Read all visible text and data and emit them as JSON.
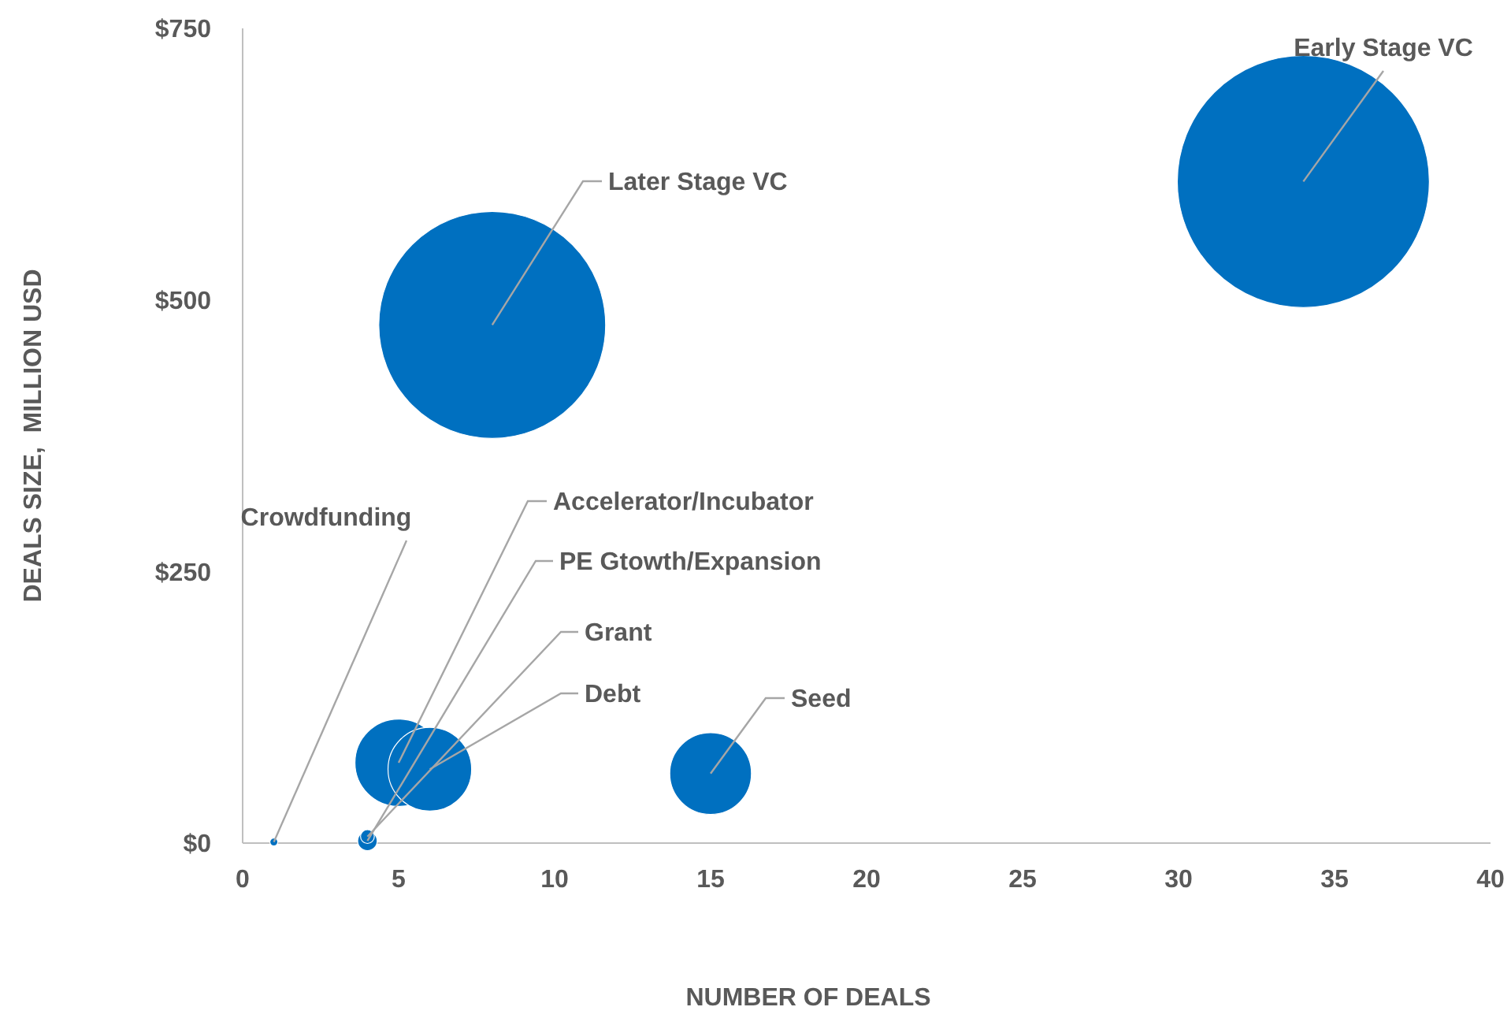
{
  "chart_data": {
    "type": "bubble",
    "xlabel": "NUMBER OF DEALS",
    "ylabel": "DEALS SIZE,  MILLION USD",
    "x": [
      34,
      8,
      1,
      5,
      4,
      4,
      6,
      15
    ],
    "values": [
      609,
      477,
      1,
      74,
      2,
      6,
      68,
      64
    ],
    "sizes": [
      1,
      0.81,
      0.001,
      0.12,
      0.006,
      0.003,
      0.11,
      0.105
    ],
    "color": "#0070c0",
    "annotations": [
      {
        "text": "Early Stage VC",
        "x": 34,
        "y": 609
      },
      {
        "text": "Later Stage VC",
        "x": 8,
        "y": 477
      },
      {
        "text": "Crowdfunding",
        "x": 1,
        "y": 1
      },
      {
        "text": "Accelerator/Incubator",
        "x": 5,
        "y": 74
      },
      {
        "text": "PE Gtowth/Expansion",
        "x": 4,
        "y": 2
      },
      {
        "text": "Grant",
        "x": 4,
        "y": 6
      },
      {
        "text": "Debt",
        "x": 6,
        "y": 68
      },
      {
        "text": "Seed",
        "x": 15,
        "y": 64
      }
    ],
    "xlim": [
      0,
      40
    ],
    "xticks": [
      0,
      5,
      10,
      15,
      20,
      25,
      30,
      35,
      40
    ],
    "ylim": [
      0,
      750
    ],
    "yticks": [
      {
        "value": 0,
        "label": "$0"
      },
      {
        "value": 250,
        "label": "$250"
      },
      {
        "value": 500,
        "label": "$500"
      },
      {
        "value": 750,
        "label": "$750"
      }
    ],
    "grid": false
  }
}
